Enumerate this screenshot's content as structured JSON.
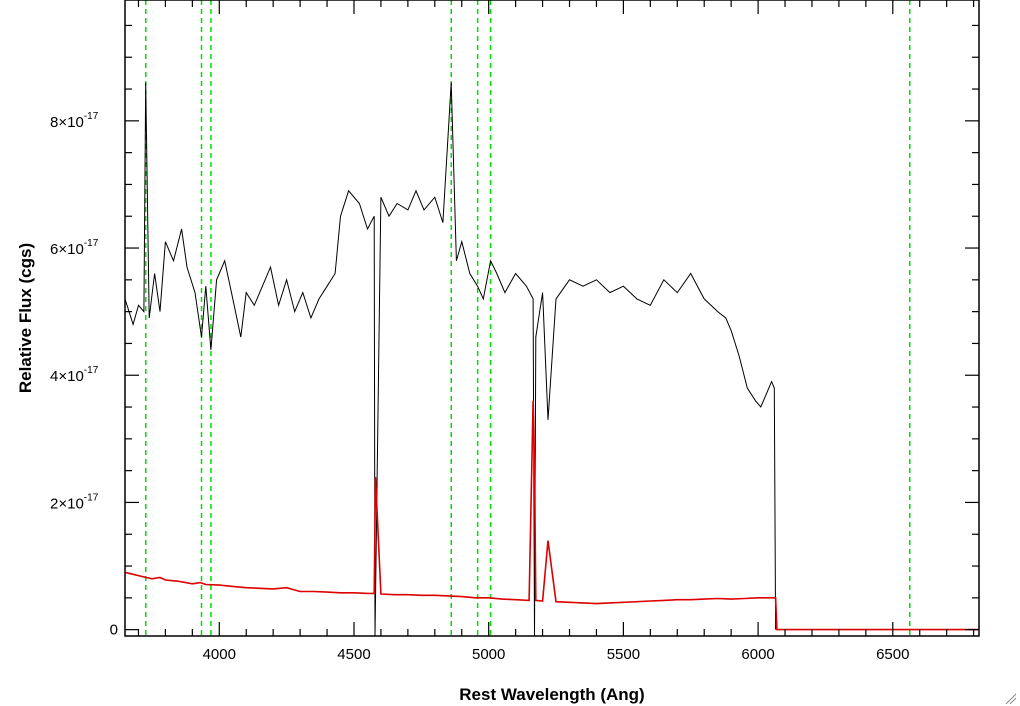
{
  "chart_data": {
    "type": "line",
    "title": "",
    "xlabel": "Rest Wavelength (Ang)",
    "ylabel": "Relative Flux (cgs)",
    "xlim": [
      3650,
      6820
    ],
    "ylim": [
      -1e-18,
      9.9e-17
    ],
    "x_ticks": [
      {
        "value": 4000,
        "label": "4000"
      },
      {
        "value": 4500,
        "label": "4500"
      },
      {
        "value": 5000,
        "label": "5000"
      },
      {
        "value": 5500,
        "label": "5500"
      },
      {
        "value": 6000,
        "label": "6000"
      },
      {
        "value": 6500,
        "label": "6500"
      }
    ],
    "y_ticks": [
      {
        "value": 0,
        "label": "0",
        "mantissa": "",
        "exponent": ""
      },
      {
        "value": 2e-17,
        "label": "",
        "mantissa": "2×10",
        "exponent": "-17"
      },
      {
        "value": 4e-17,
        "label": "",
        "mantissa": "4×10",
        "exponent": "-17"
      },
      {
        "value": 6e-17,
        "label": "",
        "mantissa": "6×10",
        "exponent": "-17"
      },
      {
        "value": 8e-17,
        "label": "",
        "mantissa": "8×10",
        "exponent": "-17"
      }
    ],
    "grid": false,
    "legend": "none",
    "vertical_lines": {
      "color": "#00dd00",
      "style": "dashed",
      "x": [
        3727,
        3934,
        3969,
        4861,
        4959,
        5007,
        6563
      ]
    },
    "series": [
      {
        "color": "#000000",
        "x": [
          3650,
          3680,
          3700,
          3720,
          3727,
          3740,
          3760,
          3780,
          3800,
          3830,
          3860,
          3880,
          3910,
          3934,
          3950,
          3969,
          3990,
          4020,
          4050,
          4080,
          4100,
          4130,
          4160,
          4190,
          4220,
          4250,
          4280,
          4310,
          4340,
          4370,
          4400,
          4430,
          4450,
          4480,
          4520,
          4550,
          4575,
          4578,
          4600,
          4630,
          4660,
          4700,
          4730,
          4760,
          4800,
          4830,
          4861,
          4880,
          4900,
          4930,
          4959,
          4980,
          5007,
          5030,
          5060,
          5100,
          5140,
          5165,
          5170,
          5175,
          5200,
          5220,
          5250,
          5300,
          5350,
          5400,
          5450,
          5500,
          5550,
          5600,
          5650,
          5700,
          5750,
          5800,
          5850,
          5880,
          5900,
          5930,
          5960,
          5990,
          6010,
          6030,
          6050,
          6060,
          6065
        ],
        "y": [
          5.2e-17,
          4.8e-17,
          5.1e-17,
          5e-17,
          8.6e-17,
          4.9e-17,
          5.6e-17,
          5e-17,
          6.1e-17,
          5.8e-17,
          6.3e-17,
          5.7e-17,
          5.3e-17,
          4.6e-17,
          5.4e-17,
          4.4e-17,
          5.5e-17,
          5.8e-17,
          5.2e-17,
          4.6e-17,
          5.3e-17,
          5.1e-17,
          5.4e-17,
          5.7e-17,
          5.1e-17,
          5.5e-17,
          5e-17,
          5.3e-17,
          4.9e-17,
          5.2e-17,
          5.4e-17,
          5.6e-17,
          6.5e-17,
          6.9e-17,
          6.7e-17,
          6.3e-17,
          6.5e-17,
          -1e-18,
          6.8e-17,
          6.5e-17,
          6.7e-17,
          6.6e-17,
          6.9e-17,
          6.6e-17,
          6.8e-17,
          6.4e-17,
          8.6e-17,
          5.8e-17,
          6.1e-17,
          5.6e-17,
          5.4e-17,
          5.2e-17,
          5.8e-17,
          5.6e-17,
          5.3e-17,
          5.6e-17,
          5.4e-17,
          5.2e-17,
          -1e-18,
          4.6e-17,
          5.3e-17,
          3.3e-17,
          5.2e-17,
          5.5e-17,
          5.4e-17,
          5.5e-17,
          5.3e-17,
          5.4e-17,
          5.2e-17,
          5.1e-17,
          5.5e-17,
          5.3e-17,
          5.6e-17,
          5.2e-17,
          5e-17,
          4.9e-17,
          4.7e-17,
          4.3e-17,
          3.8e-17,
          3.6e-17,
          3.5e-17,
          3.7e-17,
          3.9e-17,
          3.8e-17,
          0
        ]
      },
      {
        "color": "#dd0000",
        "x": [
          3650,
          3700,
          3750,
          3780,
          3800,
          3850,
          3900,
          3930,
          3950,
          4000,
          4050,
          4100,
          4150,
          4200,
          4250,
          4300,
          4350,
          4400,
          4450,
          4500,
          4550,
          4575,
          4580,
          4600,
          4650,
          4700,
          4750,
          4800,
          4850,
          4900,
          4950,
          5000,
          5050,
          5100,
          5150,
          5165,
          5170,
          5175,
          5200,
          5220,
          5250,
          5300,
          5350,
          5400,
          5450,
          5500,
          5550,
          5600,
          5650,
          5700,
          5750,
          5800,
          5850,
          5900,
          5950,
          6000,
          6050,
          6065,
          6070,
          6100,
          6200,
          6300,
          6400,
          6500,
          6600,
          6700,
          6820
        ],
        "y": [
          9e-18,
          8.5e-18,
          8e-18,
          8.2e-18,
          7.8e-18,
          7.6e-18,
          7.2e-18,
          7.4e-18,
          7.1e-18,
          7e-18,
          6.8e-18,
          6.6e-18,
          6.5e-18,
          6.4e-18,
          6.6e-18,
          6e-18,
          6e-18,
          5.9e-18,
          5.8e-18,
          5.8e-18,
          5.7e-18,
          5.7e-18,
          2.4e-17,
          5.6e-18,
          5.5e-18,
          5.5e-18,
          5.4e-18,
          5.4e-18,
          5.3e-18,
          5.2e-18,
          5e-18,
          5e-18,
          4.8e-18,
          4.7e-18,
          4.6e-18,
          3.6e-17,
          2.6e-17,
          4.6e-18,
          4.5e-18,
          1.4e-17,
          4.4e-18,
          4.3e-18,
          4.2e-18,
          4.1e-18,
          4.2e-18,
          4.3e-18,
          4.4e-18,
          4.5e-18,
          4.6e-18,
          4.7e-18,
          4.7e-18,
          4.8e-18,
          4.9e-18,
          4.8e-18,
          4.9e-18,
          5e-18,
          5e-18,
          5e-18,
          0,
          0,
          0,
          0,
          0,
          0,
          0,
          0,
          0
        ]
      }
    ]
  }
}
